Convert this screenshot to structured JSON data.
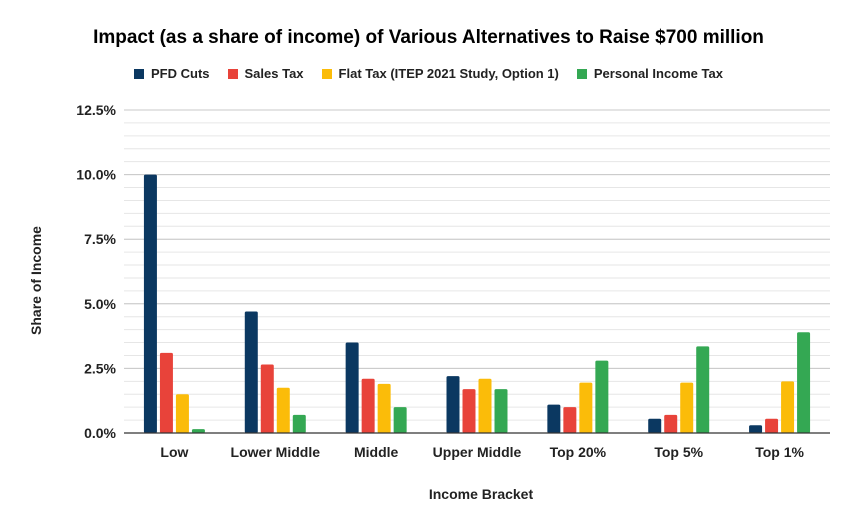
{
  "chart_data": {
    "type": "bar",
    "title": "Impact (as a share of income) of Various Alternatives to Raise $700 million",
    "xlabel": "Income Bracket",
    "ylabel": "Share of Income",
    "categories": [
      "Low",
      "Lower Middle",
      "Middle",
      "Upper Middle",
      "Top 20%",
      "Top 5%",
      "Top 1%"
    ],
    "ylim": [
      0,
      12.5
    ],
    "yticks": [
      0,
      2.5,
      5,
      7.5,
      10,
      12.5
    ],
    "ytick_labels": [
      "0.0%",
      "2.5%",
      "5.0%",
      "7.5%",
      "10.0%",
      "12.5%"
    ],
    "grid": true,
    "legend_position": "top",
    "series": [
      {
        "name": "PFD Cuts",
        "color": "#0b3861",
        "values": [
          10.0,
          4.7,
          3.5,
          2.2,
          1.1,
          0.55,
          0.3
        ]
      },
      {
        "name": "Sales Tax",
        "color": "#e8433a",
        "values": [
          3.1,
          2.65,
          2.1,
          1.7,
          1.0,
          0.7,
          0.55
        ]
      },
      {
        "name": "Flat Tax (ITEP 2021 Study, Option 1)",
        "color": "#fbbc09",
        "values": [
          1.5,
          1.75,
          1.9,
          2.1,
          1.95,
          1.95,
          2.0
        ]
      },
      {
        "name": "Personal Income Tax",
        "color": "#34a853",
        "values": [
          0.15,
          0.7,
          1.0,
          1.7,
          2.8,
          3.35,
          3.9
        ]
      }
    ]
  }
}
